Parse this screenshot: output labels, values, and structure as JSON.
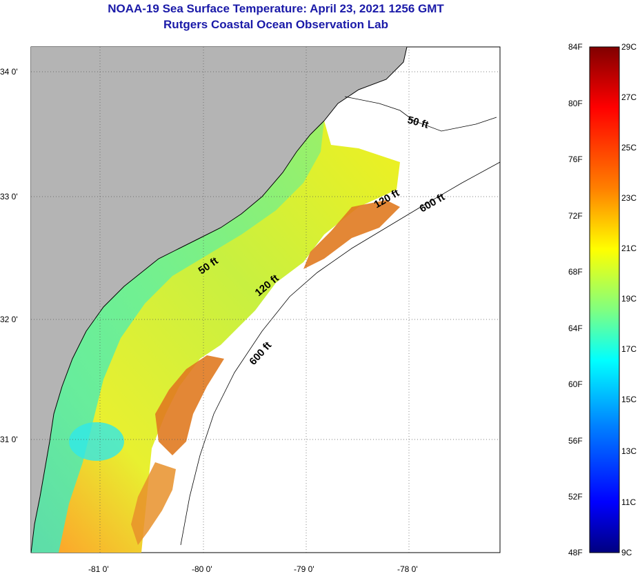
{
  "title": {
    "line1": "NOAA-19 Sea Surface Temperature:  April 23, 2021 1256 GMT",
    "line2": "Rutgers Coastal Ocean Observation Lab"
  },
  "map": {
    "lat_labels": [
      "34 0'",
      "33 0'",
      "32 0'",
      "31 0'"
    ],
    "lon_labels": [
      "-81 0'",
      "-80 0'",
      "-79 0'",
      "-78 0'"
    ],
    "contours": [
      {
        "name": "50 ft",
        "labels": [
          "50 ft",
          "50 ft"
        ]
      },
      {
        "name": "120 ft",
        "labels": [
          "120 ft",
          "120 ft"
        ]
      },
      {
        "name": "600 ft",
        "labels": [
          "600 ft",
          "600 ft"
        ]
      }
    ],
    "colors": {
      "land": "#b4b4b4",
      "water_nodata": "#ffffff",
      "coast": "#000000",
      "grid": "#555555"
    }
  },
  "colorbar": {
    "fahrenheit_labels": [
      "84F",
      "80F",
      "76F",
      "72F",
      "68F",
      "64F",
      "60F",
      "56F",
      "52F",
      "48F"
    ],
    "celsius_labels": [
      "29C",
      "27C",
      "25C",
      "23C",
      "21C",
      "19C",
      "17C",
      "15C",
      "13C",
      "11C",
      "9C"
    ],
    "gradient_colors": [
      "#800000",
      "#ff0000",
      "#ff8000",
      "#ffff00",
      "#80ff80",
      "#00ffff",
      "#0080ff",
      "#0000ff",
      "#000080"
    ]
  }
}
